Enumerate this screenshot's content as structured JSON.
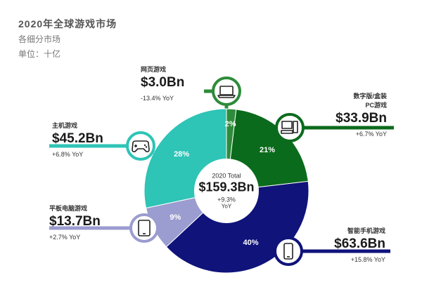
{
  "header": {
    "title": "2020年全球游戏市场",
    "subtitle": "各细分市场",
    "unit": "单位：十亿"
  },
  "center": {
    "label": "2020 Total",
    "value": "$159.3Bn",
    "growth": "+9.3%",
    "growth_suffix": "YoY"
  },
  "segments": {
    "web": {
      "name": "网页游戏",
      "value": "$3.0Bn",
      "yoy": "-13.4% YoY",
      "pct_label": "2%",
      "icon": "laptop-icon"
    },
    "pc": {
      "name_line1": "数字版/盒装",
      "name_line2": "PC游戏",
      "value": "$33.9Bn",
      "yoy": "+6.7% YoY",
      "pct_label": "21%",
      "icon": "desktop-pc-icon"
    },
    "mobile": {
      "name": "智能手机游戏",
      "value": "$63.6Bn",
      "yoy": "+15.8% YoY",
      "pct_label": "40%",
      "icon": "smartphone-icon"
    },
    "tablet": {
      "name": "平板电脑游戏",
      "value": "$13.7Bn",
      "yoy": "+2.7% YoY",
      "pct_label": "9%",
      "icon": "tablet-icon"
    },
    "console": {
      "name": "主机游戏",
      "value": "$45.2Bn",
      "yoy": "+6.8% YoY",
      "pct_label": "28%",
      "icon": "gamepad-icon"
    }
  },
  "chart_data": {
    "type": "pie",
    "title": "2020年全球游戏市场",
    "subtitle": "各细分市场",
    "unit": "单位：十亿",
    "total": 159.3,
    "categories": [
      "网页游戏",
      "数字版/盒装PC游戏",
      "智能手机游戏",
      "平板电脑游戏",
      "主机游戏"
    ],
    "values": [
      3.0,
      33.9,
      63.6,
      13.7,
      45.2
    ],
    "percent_labels": [
      2,
      21,
      40,
      9,
      28
    ],
    "yoy_growth_percent": [
      -13.4,
      6.7,
      15.8,
      2.7,
      6.8
    ],
    "total_yoy_growth_percent": 9.3,
    "colors": {
      "web": "#2e8b3a",
      "pc": "#0b6b1c",
      "mobile": "#0f137a",
      "tablet": "#9b9ccf",
      "console": "#2ec4b6",
      "center": "#ffffff"
    }
  }
}
